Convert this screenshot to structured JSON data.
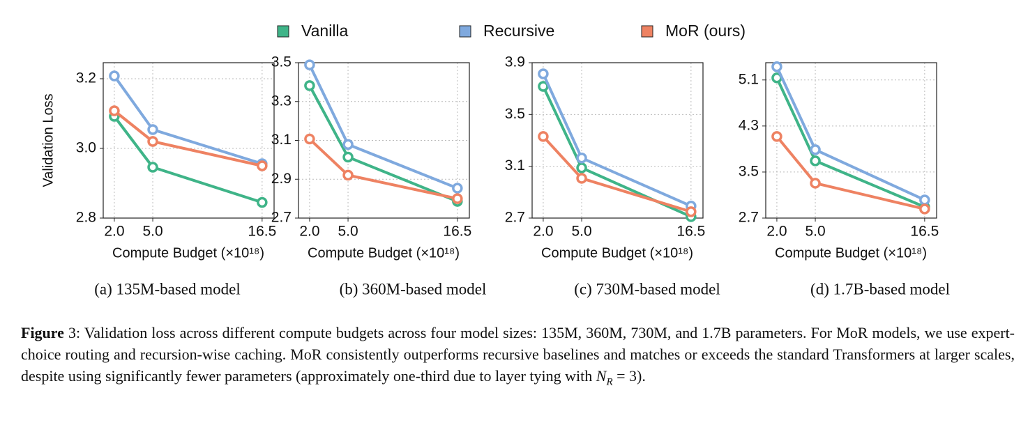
{
  "chart_data": [
    {
      "type": "line",
      "caption": "(a) 135M-based model",
      "x_label": "Compute Budget (×10¹⁸)",
      "y_label": "Validation Loss",
      "categories": [
        "2.0",
        "5.0",
        "16.5"
      ],
      "series": [
        {
          "name": "Vanilla",
          "color": "#3fb488",
          "values": [
            3.092,
            2.946,
            2.845
          ]
        },
        {
          "name": "Recursive",
          "color": "#7fa9de",
          "values": [
            3.208,
            3.054,
            2.956
          ]
        },
        {
          "name": "MoR (ours)",
          "color": "#ee8262",
          "values": [
            3.108,
            3.02,
            2.95
          ]
        }
      ],
      "ylim": [
        2.8,
        3.246
      ],
      "yticks": [
        2.8,
        {
          "value": 3,
          "label": "3.0"
        },
        3.2
      ],
      "grid": true
    },
    {
      "type": "line",
      "caption": "(b) 360M-based model",
      "x_label": "Compute Budget (×10¹⁸)",
      "categories": [
        "2.0",
        "5.0",
        "16.5"
      ],
      "series": [
        {
          "name": "Vanilla",
          "color": "#3fb488",
          "values": [
            3.382,
            3.014,
            2.786
          ]
        },
        {
          "name": "Recursive",
          "color": "#7fa9de",
          "values": [
            3.489,
            3.079,
            2.854
          ]
        },
        {
          "name": "MoR (ours)",
          "color": "#ee8262",
          "values": [
            3.107,
            2.921,
            2.8
          ]
        }
      ],
      "ylim": [
        2.7,
        3.5
      ],
      "yticks": [
        2.7,
        2.9,
        3.1,
        3.3,
        3.5
      ],
      "grid": true
    },
    {
      "type": "line",
      "caption": "(c) 730M-based model",
      "x_label": "Compute Budget (×10¹⁸)",
      "categories": [
        "2.0",
        "5.0",
        "16.5"
      ],
      "series": [
        {
          "name": "Vanilla",
          "color": "#3fb488",
          "values": [
            3.717,
            3.088,
            2.711
          ]
        },
        {
          "name": "Recursive",
          "color": "#7fa9de",
          "values": [
            3.814,
            3.164,
            2.793
          ]
        },
        {
          "name": "MoR (ours)",
          "color": "#ee8262",
          "values": [
            3.33,
            3.007,
            2.749
          ]
        }
      ],
      "ylim": [
        2.7,
        3.9
      ],
      "yticks": [
        2.7,
        3.1,
        3.5,
        3.9
      ],
      "grid": true
    },
    {
      "type": "line",
      "caption": "(d) 1.7B-based model",
      "x_label": "Compute Budget (×10¹⁸)",
      "categories": [
        "2.0",
        "5.0",
        "16.5"
      ],
      "series": [
        {
          "name": "Vanilla",
          "color": "#3fb488",
          "values": [
            5.136,
            3.694,
            2.894
          ]
        },
        {
          "name": "Recursive",
          "color": "#7fa9de",
          "values": [
            5.33,
            3.888,
            3.015
          ]
        },
        {
          "name": "MoR (ours)",
          "color": "#ee8262",
          "values": [
            4.118,
            3.306,
            2.858
          ]
        }
      ],
      "ylim": [
        2.7,
        5.4
      ],
      "yticks": [
        2.7,
        3.5,
        4.3,
        5.1
      ],
      "grid": true
    }
  ],
  "figure_caption": {
    "label": "Figure",
    "text": "3: Validation loss across different compute budgets across four model sizes: 135M, 360M, 730M, and 1.7B parameters. For MoR models, we use expert-choice routing and recursion-wise caching. MoR consistently outperforms recursive baselines and matches or exceeds the standard Transformers at larger scales, despite using significantly fewer parameters (approximately one-third due to layer tying with ",
    "math_var": "N",
    "math_sub": "R",
    "math_rest": " = 3",
    "end": ")."
  }
}
